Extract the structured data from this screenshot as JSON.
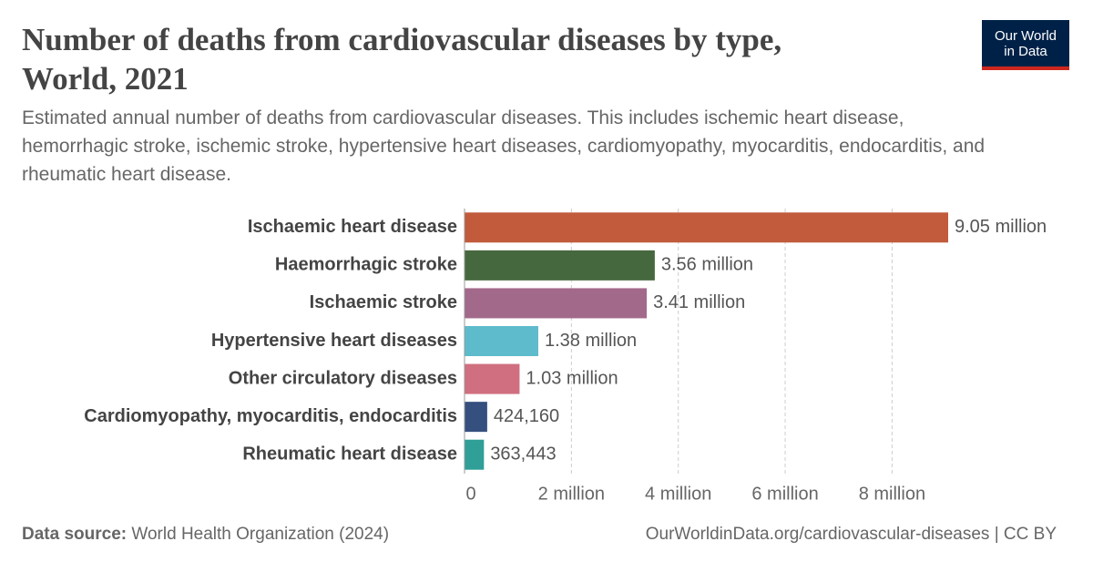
{
  "chart_data": {
    "type": "bar",
    "orientation": "horizontal",
    "title": "Number of deaths from cardiovascular diseases by type, World, 2021",
    "subtitle": "Estimated annual number of deaths from cardiovascular diseases. This includes ischemic heart disease, hemorrhagic stroke, ischemic stroke, hypertensive heart diseases, cardiomyopathy, myocarditis, endocarditis, and rheumatic heart disease.",
    "categories": [
      "Ischaemic heart disease",
      "Haemorrhagic stroke",
      "Ischaemic stroke",
      "Hypertensive heart diseases",
      "Other circulatory diseases",
      "Cardiomyopathy, myocarditis, endocarditis",
      "Rheumatic heart disease"
    ],
    "values": [
      9050000,
      3560000,
      3410000,
      1380000,
      1030000,
      424160,
      363443
    ],
    "value_labels": [
      "9.05 million",
      "3.56 million",
      "3.41 million",
      "1.38 million",
      "1.03 million",
      "424,160",
      "363,443"
    ],
    "colors": [
      "#c15b3c",
      "#46683e",
      "#a2698a",
      "#5dbbcb",
      "#cf6f7f",
      "#35507f",
      "#2f9f98"
    ],
    "xlim": [
      0,
      9050000
    ],
    "xticks": [
      0,
      {
        "value": 2000000,
        "label": "2 million"
      },
      {
        "value": 4000000,
        "label": "4 million"
      },
      {
        "value": 6000000,
        "label": "6 million"
      },
      {
        "value": 8000000,
        "label": "8 million"
      }
    ],
    "grid": true
  },
  "footer": {
    "source_label": "Data source:",
    "source": "World Health Organization (2024)",
    "url": "OurWorldinData.org/cardiovascular-diseases | CC BY"
  },
  "logo": {
    "line1": "Our World",
    "line2": "in Data"
  }
}
